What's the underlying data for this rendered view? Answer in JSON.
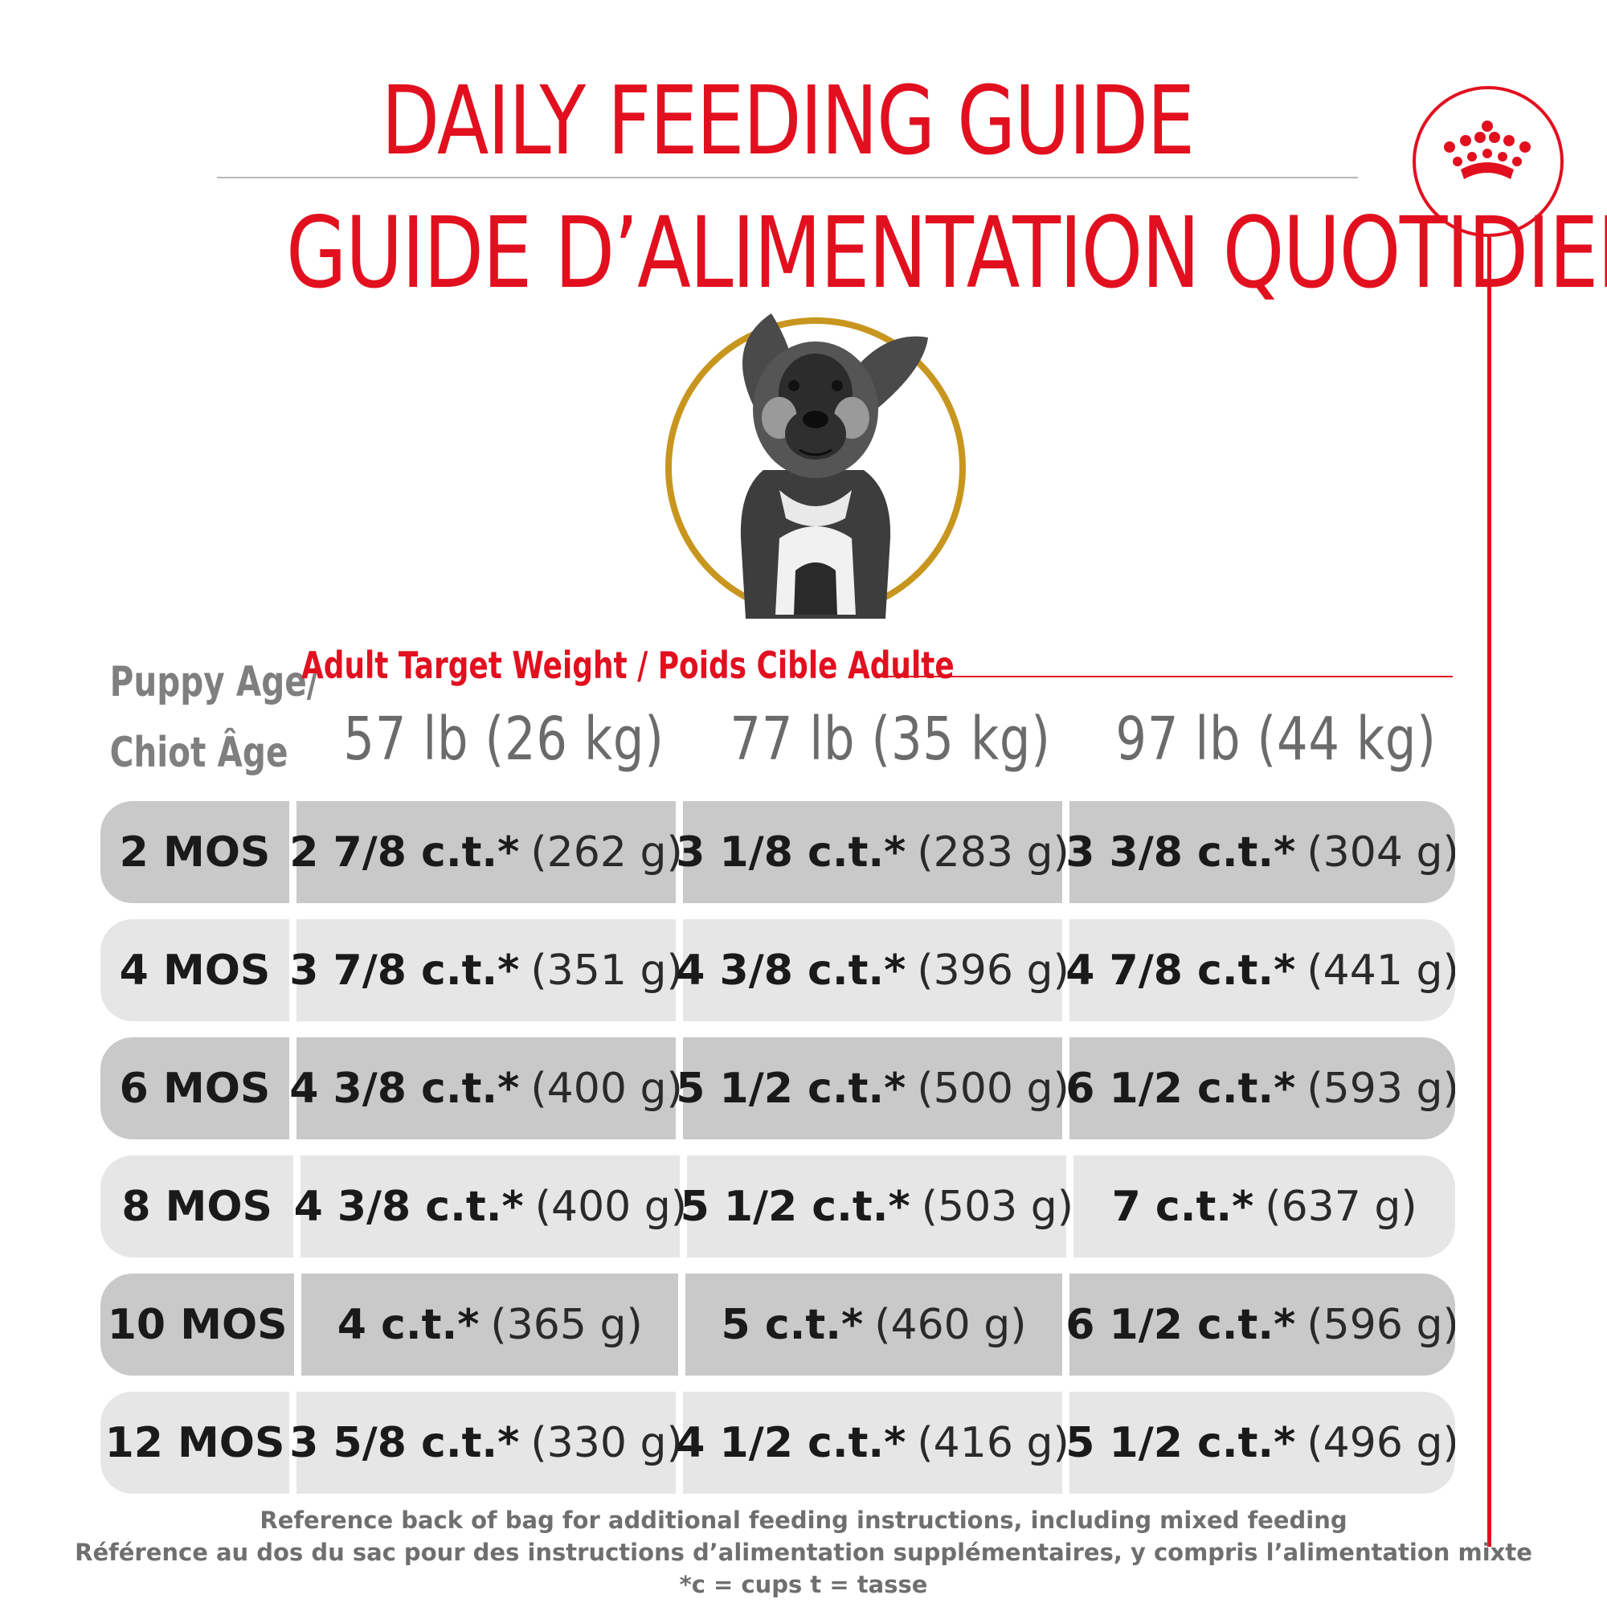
{
  "colors": {
    "brand_red": "#e2101f",
    "puppy_ring_gold": "#c8961e",
    "row_dark": "#c9c9c9",
    "row_light": "#e6e6e6"
  },
  "header": {
    "title_en": "DAILY FEEDING GUIDE",
    "title_fr": "GUIDE D’ALIMENTATION QUOTIDIEN",
    "logo_icon": "royal-crown-icon"
  },
  "table": {
    "age_header_line1": "Puppy Age/",
    "age_header_line2": "Chiot Âge",
    "target_header": "Adult Target Weight / Poids Cible Adulte",
    "weights": [
      "57 lb (26 kg)",
      "77 lb (35 kg)",
      "97 lb (44 kg)"
    ],
    "rows": [
      {
        "age": "2 MOS",
        "cells": [
          {
            "qty": "2 7/8 c.t.*",
            "gram": "(262 g)"
          },
          {
            "qty": "3 1/8 c.t.*",
            "gram": "(283 g)"
          },
          {
            "qty": "3 3/8 c.t.*",
            "gram": "(304 g)"
          }
        ]
      },
      {
        "age": "4 MOS",
        "cells": [
          {
            "qty": "3 7/8 c.t.*",
            "gram": "(351 g)"
          },
          {
            "qty": "4 3/8 c.t.*",
            "gram": "(396 g)"
          },
          {
            "qty": "4 7/8 c.t.*",
            "gram": "(441 g)"
          }
        ]
      },
      {
        "age": "6 MOS",
        "cells": [
          {
            "qty": "4 3/8 c.t.*",
            "gram": "(400 g)"
          },
          {
            "qty": "5 1/2 c.t.*",
            "gram": "(500 g)"
          },
          {
            "qty": "6 1/2 c.t.*",
            "gram": "(593 g)"
          }
        ]
      },
      {
        "age": "8 MOS",
        "cells": [
          {
            "qty": "4 3/8 c.t.*",
            "gram": "(400 g)"
          },
          {
            "qty": "5 1/2 c.t.*",
            "gram": "(503 g)"
          },
          {
            "qty": "7 c.t.*",
            "gram": "(637 g)"
          }
        ]
      },
      {
        "age": "10 MOS",
        "cells": [
          {
            "qty": "4 c.t.*",
            "gram": "(365 g)"
          },
          {
            "qty": "5 c.t.*",
            "gram": "(460 g)"
          },
          {
            "qty": "6 1/2 c.t.*",
            "gram": "(596 g)"
          }
        ]
      },
      {
        "age": "12 MOS",
        "cells": [
          {
            "qty": "3 5/8 c.t.*",
            "gram": "(330 g)"
          },
          {
            "qty": "4 1/2 c.t.*",
            "gram": "(416 g)"
          },
          {
            "qty": "5 1/2 c.t.*",
            "gram": "(496 g)"
          }
        ]
      }
    ]
  },
  "footer": {
    "line1": "Reference back of bag for additional feeding instructions, including mixed feeding",
    "line2": "Référence au dos du sac pour des instructions d’alimentation supplémentaires, y compris l’alimentation mixte",
    "line3": "*c = cups t = tasse"
  }
}
